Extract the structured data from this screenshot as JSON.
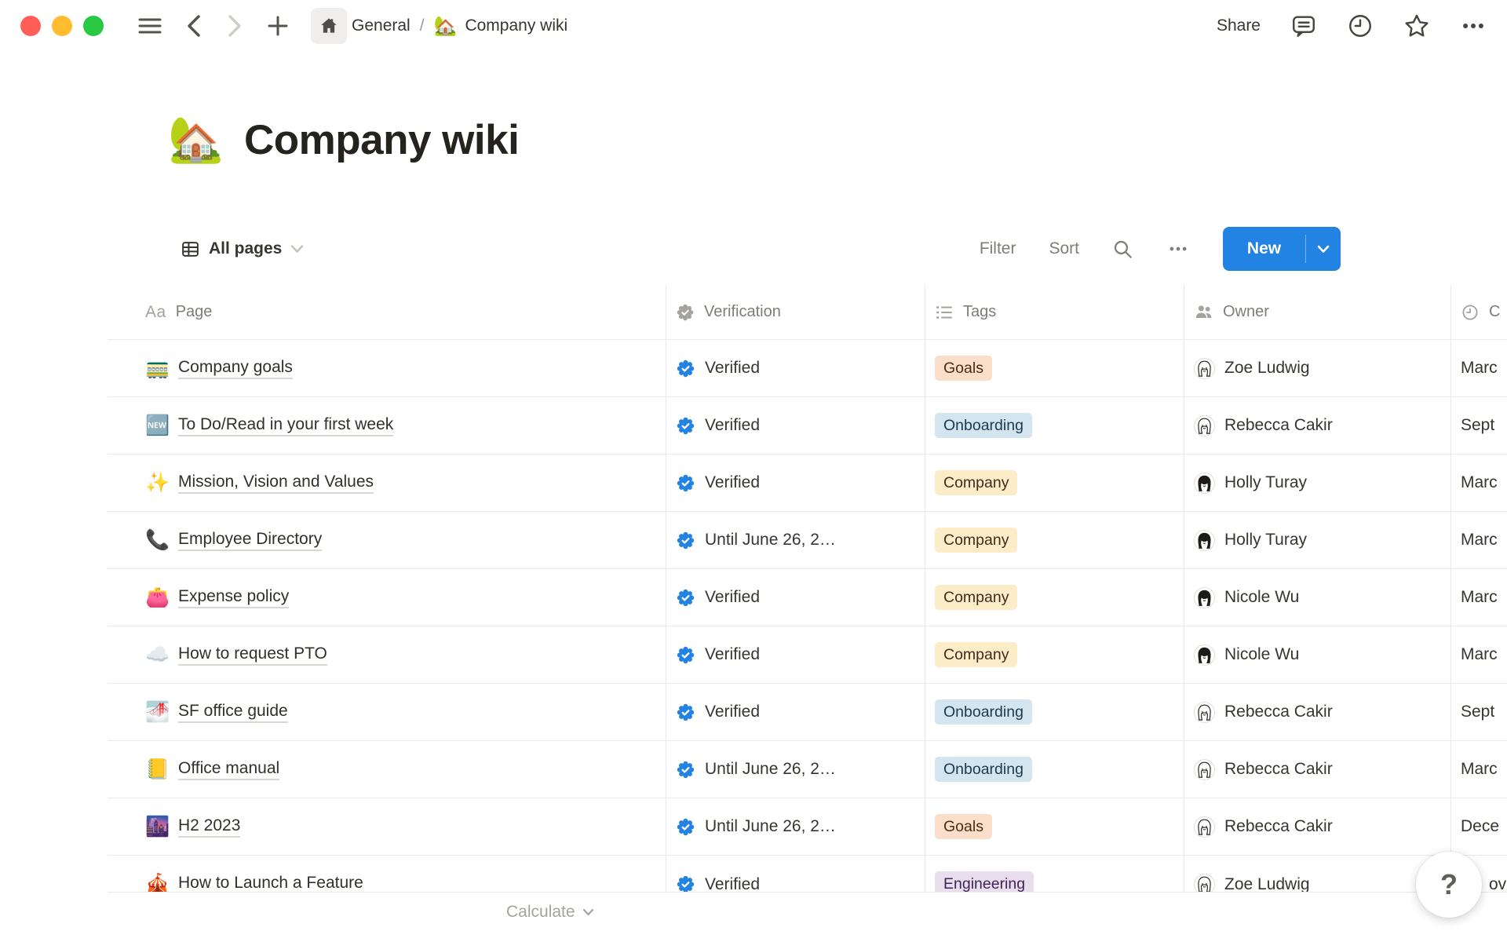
{
  "topbar": {
    "breadcrumb": {
      "workspace": "General",
      "separator": "/",
      "page_emoji": "🏡",
      "page_title": "Company wiki"
    },
    "share_label": "Share"
  },
  "page_header": {
    "emoji": "🏡",
    "title": "Company wiki"
  },
  "view_bar": {
    "view_name": "All pages",
    "filter_label": "Filter",
    "sort_label": "Sort",
    "new_button_label": "New"
  },
  "table": {
    "columns": {
      "page": "Page",
      "verification": "Verification",
      "tags": "Tags",
      "owner": "Owner",
      "created": "C"
    },
    "rows": [
      {
        "emoji": "🚃",
        "page": "Company goals",
        "verification": "Verified",
        "tag": "Goals",
        "tag_color": "orange",
        "owner": "Zoe Ludwig",
        "avatar": "light",
        "created": "Marc"
      },
      {
        "emoji": "🆕",
        "page": "To Do/Read in your first week",
        "verification": "Verified",
        "tag": "Onboarding",
        "tag_color": "blue",
        "owner": "Rebecca Cakir",
        "avatar": "light",
        "created": "Sept"
      },
      {
        "emoji": "✨",
        "page": "Mission, Vision and Values",
        "verification": "Verified",
        "tag": "Company",
        "tag_color": "yellow",
        "owner": "Holly Turay",
        "avatar": "dark",
        "created": "Marc"
      },
      {
        "emoji": "📞",
        "page": "Employee Directory",
        "verification": "Until June 26, 2…",
        "tag": "Company",
        "tag_color": "yellow",
        "owner": "Holly Turay",
        "avatar": "dark",
        "created": "Marc"
      },
      {
        "emoji": "👛",
        "page": "Expense policy",
        "verification": "Verified",
        "tag": "Company",
        "tag_color": "yellow",
        "owner": "Nicole Wu",
        "avatar": "dark",
        "created": "Marc"
      },
      {
        "emoji": "☁️",
        "page": "How to request PTO",
        "verification": "Verified",
        "tag": "Company",
        "tag_color": "yellow",
        "owner": "Nicole Wu",
        "avatar": "dark",
        "created": "Marc"
      },
      {
        "emoji": "🌁",
        "page": "SF office guide",
        "verification": "Verified",
        "tag": "Onboarding",
        "tag_color": "blue",
        "owner": "Rebecca Cakir",
        "avatar": "light",
        "created": "Sept"
      },
      {
        "emoji": "📒",
        "page": "Office manual",
        "verification": "Until June 26, 2…",
        "tag": "Onboarding",
        "tag_color": "blue",
        "owner": "Rebecca Cakir",
        "avatar": "light",
        "created": "Marc"
      },
      {
        "emoji": "🌆",
        "page": "H2 2023",
        "verification": "Until June 26, 2…",
        "tag": "Goals",
        "tag_color": "orange",
        "owner": "Rebecca Cakir",
        "avatar": "light",
        "created": "Dece"
      },
      {
        "emoji": "🎪",
        "page": "How to Launch a Feature",
        "verification": "Verified",
        "tag": "Engineering",
        "tag_color": "purple",
        "owner": "Zoe Ludwig",
        "avatar": "light",
        "created": "ove"
      }
    ],
    "footer_calculate_label": "Calculate"
  },
  "help_button_label": "?",
  "tag_palette": {
    "orange": {
      "bg": "#FADEC9",
      "text": "#4C2C11"
    },
    "blue": {
      "bg": "#D3E5EF",
      "text": "#1B3A4F"
    },
    "yellow": {
      "bg": "#FDECC8",
      "text": "#402C1B"
    },
    "purple": {
      "bg": "#E8DEEE",
      "text": "#412454"
    }
  },
  "colors": {
    "accent_blue": "#2383E2",
    "verified_badge": "#2383E2",
    "traffic_red": "#FF5F57",
    "traffic_yellow": "#FEBC2E",
    "traffic_green": "#28C840"
  }
}
